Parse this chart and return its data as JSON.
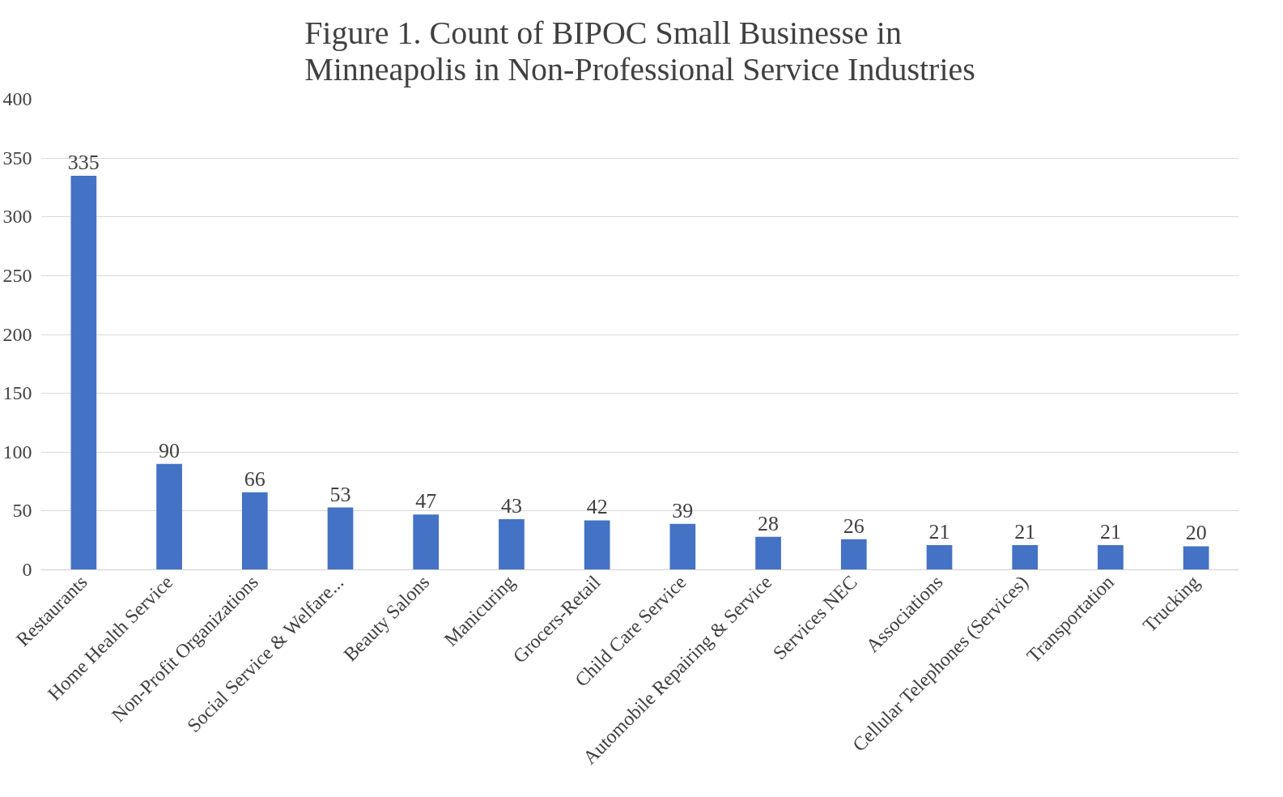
{
  "chart_data": {
    "type": "bar",
    "title": "Figure 1. Count of BIPOC Small Businesse in Minneapolis in Non-Professional Service Industries",
    "categories": [
      "Restaurants",
      "Home Health Service",
      "Non-Profit Organizations",
      "Social Service & Welfare...",
      "Beauty Salons",
      "Manicuring",
      "Grocers-Retail",
      "Child Care Service",
      "Automobile Repairing & Service",
      "Services NEC",
      "Associations",
      "Cellular Telephones (Services)",
      "Transportation",
      "Trucking"
    ],
    "values": [
      335,
      90,
      66,
      53,
      47,
      43,
      42,
      39,
      28,
      26,
      21,
      21,
      21,
      20
    ],
    "color": "#4472c4",
    "ylim": [
      0,
      400
    ],
    "yticks": [
      0,
      50,
      100,
      150,
      200,
      250,
      300,
      350,
      400
    ],
    "grid": "y",
    "data_labels": true
  }
}
